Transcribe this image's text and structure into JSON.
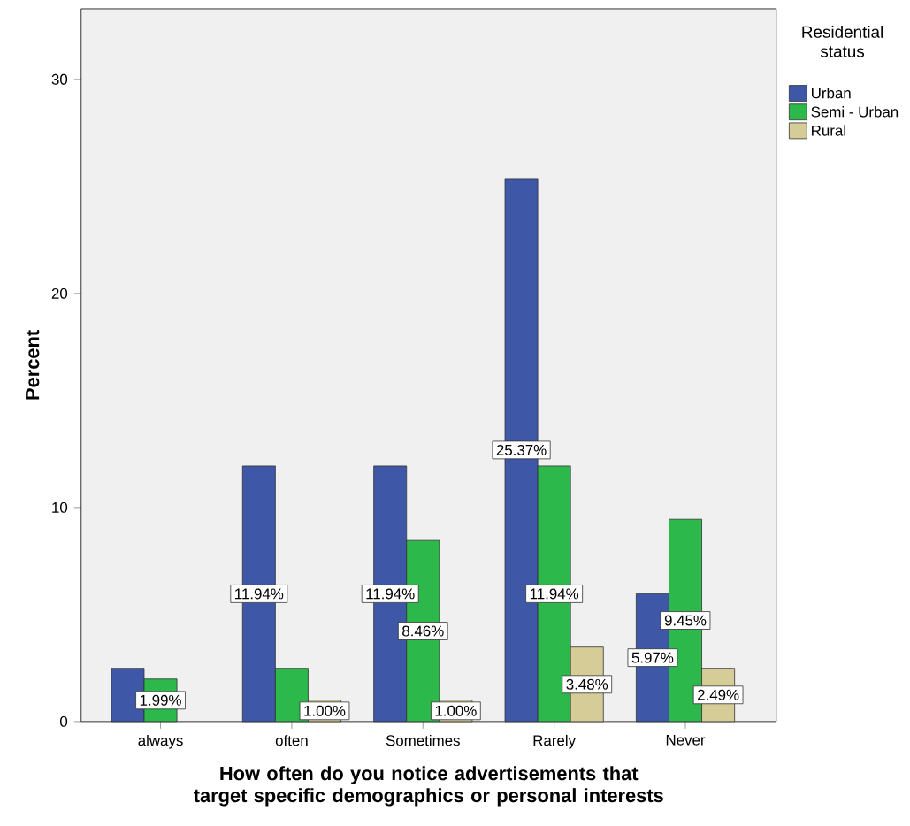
{
  "chart_data": {
    "type": "bar",
    "xlabel": "How often do you notice advertisements that target specific demographics or personal interests",
    "ylabel": "Percent",
    "legend_title": "Residential status",
    "legend": "top right",
    "categories": [
      "always",
      "often",
      "Sometimes",
      "Rarely",
      "Never"
    ],
    "ylim": [
      0,
      33.3
    ],
    "yticks": [
      0,
      10,
      20,
      30
    ],
    "grid": false,
    "series": [
      {
        "name": "Urban",
        "color": "#3f57a7",
        "values": [
          2.49,
          11.94,
          11.94,
          25.37,
          5.97
        ],
        "value_labels": [
          null,
          "11.94%",
          "11.94%",
          "25.37%",
          "5.97%"
        ]
      },
      {
        "name": "Semi - Urban",
        "color": "#2db84b",
        "values": [
          1.99,
          2.49,
          8.46,
          11.94,
          9.45
        ],
        "value_labels": [
          "1.99%",
          null,
          "8.46%",
          "11.94%",
          "9.45%"
        ]
      },
      {
        "name": "Rural",
        "color": "#d5cc97",
        "values": [
          null,
          1.0,
          1.0,
          3.48,
          2.49
        ],
        "value_labels": [
          null,
          "1.00%",
          "1.00%",
          "3.48%",
          "2.49%"
        ]
      }
    ]
  }
}
